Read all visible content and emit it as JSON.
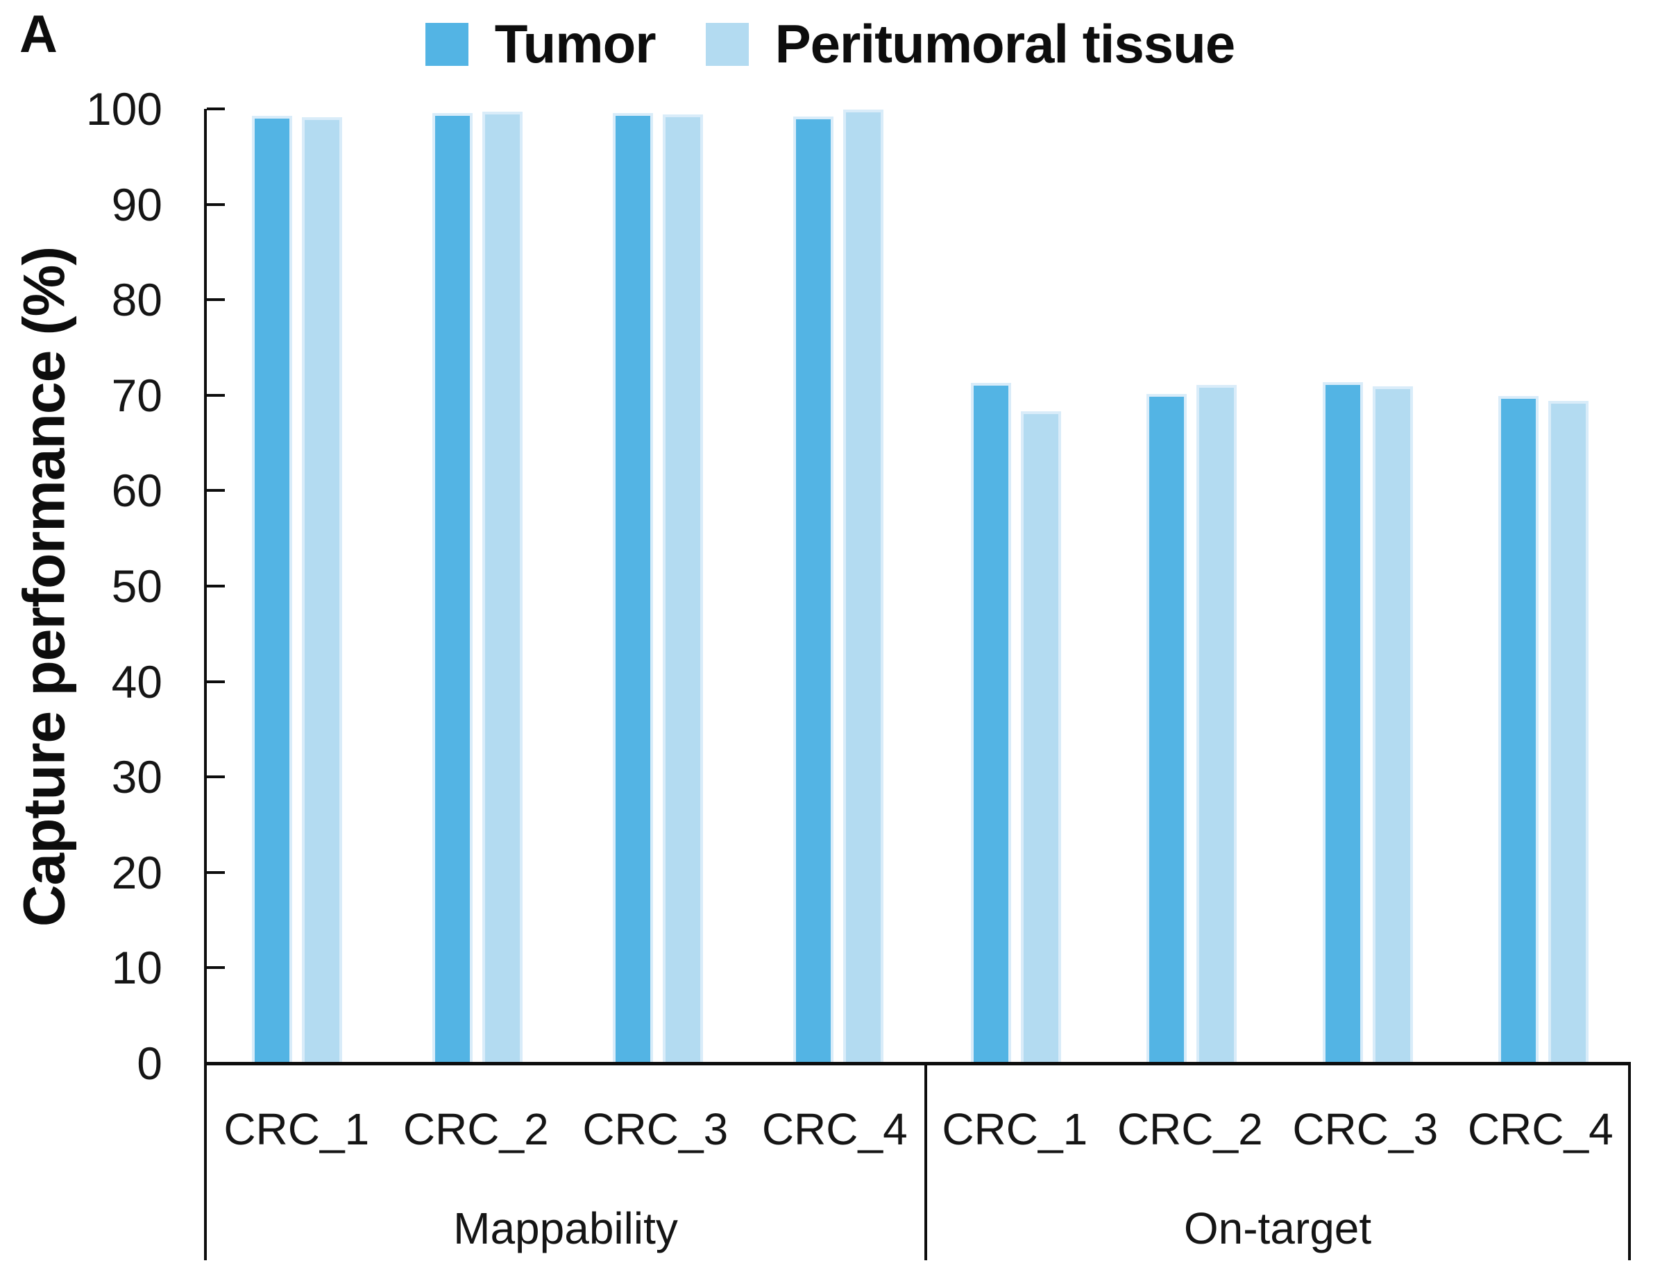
{
  "panel_label": "A",
  "legend": {
    "items": [
      {
        "label": "Tumor",
        "color": "#53b4e4"
      },
      {
        "label": "Peritumoral tissue",
        "color": "#b3dbf1"
      }
    ]
  },
  "y_axis": {
    "title": "Capture performance (%)",
    "ticks": [
      0,
      10,
      20,
      30,
      40,
      50,
      60,
      70,
      80,
      90,
      100
    ],
    "min": 0,
    "max": 100
  },
  "chart_data": {
    "type": "bar",
    "title": "",
    "xlabel": "",
    "ylabel": "Capture performance (%)",
    "ylim": [
      0,
      100
    ],
    "grid": false,
    "legend_position": "top-center",
    "groups": [
      {
        "name": "Mappability",
        "categories": [
          "CRC_1",
          "CRC_2",
          "CRC_3",
          "CRC_4"
        ],
        "series": [
          {
            "name": "Tumor",
            "color": "#53b4e4",
            "values": [
              99.3,
              99.6,
              99.6,
              99.2
            ]
          },
          {
            "name": "Peritumoral tissue",
            "color": "#b3dbf1",
            "values": [
              99.1,
              99.7,
              99.4,
              99.9
            ]
          }
        ]
      },
      {
        "name": "On-target",
        "categories": [
          "CRC_1",
          "CRC_2",
          "CRC_3",
          "CRC_4"
        ],
        "series": [
          {
            "name": "Tumor",
            "color": "#53b4e4",
            "values": [
              71.3,
              70.1,
              71.4,
              69.9
            ]
          },
          {
            "name": "Peritumoral tissue",
            "color": "#b3dbf1",
            "values": [
              68.3,
              71.1,
              70.9,
              69.4
            ]
          }
        ]
      }
    ]
  },
  "colors": {
    "tumor": "#53b4e4",
    "peritumoral": "#b3dbf1",
    "bar_edge": "#d9ecf9",
    "axis": "#0d0d0d"
  }
}
